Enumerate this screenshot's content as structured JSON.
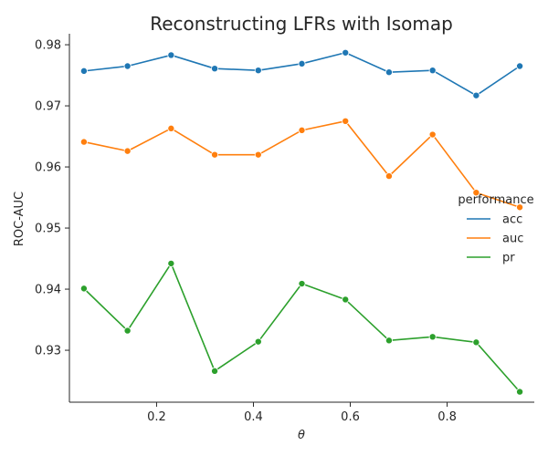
{
  "chart_data": {
    "type": "line",
    "title": "Reconstructing LFRs with Isomap",
    "xlabel": "θ",
    "ylabel": "ROC-AUC",
    "xlim": [
      0.02,
      0.98
    ],
    "ylim": [
      0.9215,
      0.9818
    ],
    "xticks": [
      0.2,
      0.4,
      0.6,
      0.8
    ],
    "xtick_labels": [
      "0.2",
      "0.4",
      "0.6",
      "0.8"
    ],
    "yticks": [
      0.93,
      0.94,
      0.95,
      0.96,
      0.97,
      0.98
    ],
    "ytick_labels": [
      "0.93",
      "0.94",
      "0.95",
      "0.96",
      "0.97",
      "0.98"
    ],
    "grid": false,
    "legend": {
      "title": "performance",
      "placement": "right"
    },
    "x": [
      0.05,
      0.14,
      0.23,
      0.32,
      0.41,
      0.5,
      0.59,
      0.68,
      0.77,
      0.86,
      0.95
    ],
    "series": [
      {
        "name": "acc",
        "color": "#1f77b4",
        "values": [
          0.9757,
          0.9765,
          0.9783,
          0.9761,
          0.9758,
          0.9769,
          0.9787,
          0.9755,
          0.9758,
          0.9717,
          0.9765
        ]
      },
      {
        "name": "auc",
        "color": "#ff7f0e",
        "values": [
          0.9641,
          0.9626,
          0.9663,
          0.962,
          0.962,
          0.966,
          0.9675,
          0.9585,
          0.9653,
          0.9558,
          0.9534
        ]
      },
      {
        "name": "pr",
        "color": "#2ca02c",
        "values": [
          0.9401,
          0.9332,
          0.9442,
          0.9266,
          0.9314,
          0.9409,
          0.9383,
          0.9316,
          0.9322,
          0.9313,
          0.9232
        ]
      }
    ]
  }
}
